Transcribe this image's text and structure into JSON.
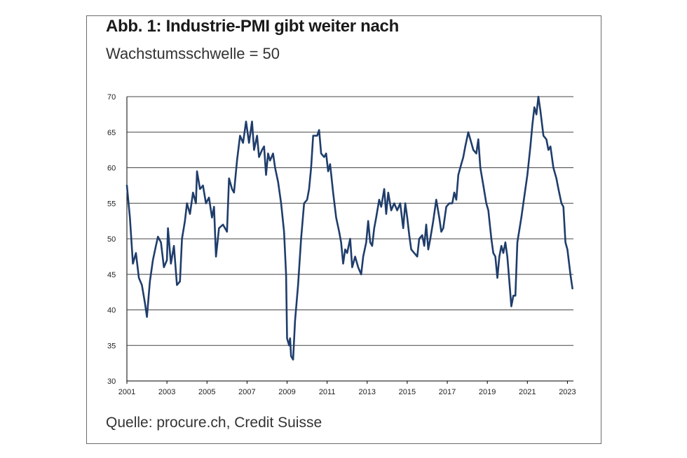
{
  "title": "Abb. 1: Industrie-PMI gibt weiter nach",
  "subtitle": "Wachstumsschwelle = 50",
  "source": "Quelle: procure.ch, Credit Suisse",
  "chart_data": {
    "type": "line",
    "title": "Abb. 1: Industrie-PMI gibt weiter nach",
    "subtitle": "Wachstumsschwelle = 50",
    "xlabel": "",
    "ylabel": "",
    "xlim": [
      2001,
      2023.3
    ],
    "ylim": [
      30,
      70
    ],
    "grid": true,
    "line_color": "#1f3d6b",
    "yticks": [
      30,
      35,
      40,
      45,
      50,
      55,
      60,
      65,
      70
    ],
    "xticks": [
      2001,
      2003,
      2005,
      2007,
      2009,
      2011,
      2013,
      2015,
      2017,
      2019,
      2021,
      2023
    ],
    "series": [
      {
        "values": [
          [
            2001.0,
            57.5
          ],
          [
            2001.15,
            53.0
          ],
          [
            2001.3,
            46.5
          ],
          [
            2001.45,
            48.0
          ],
          [
            2001.6,
            44.5
          ],
          [
            2001.75,
            43.5
          ],
          [
            2001.9,
            41.0
          ],
          [
            2002.0,
            39.0
          ],
          [
            2002.15,
            44.0
          ],
          [
            2002.3,
            47.0
          ],
          [
            2002.45,
            49.0
          ],
          [
            2002.55,
            50.3
          ],
          [
            2002.7,
            49.5
          ],
          [
            2002.85,
            46.0
          ],
          [
            2003.0,
            47.0
          ],
          [
            2003.05,
            51.5
          ],
          [
            2003.2,
            46.5
          ],
          [
            2003.35,
            49.0
          ],
          [
            2003.5,
            43.5
          ],
          [
            2003.65,
            44.0
          ],
          [
            2003.75,
            50.0
          ],
          [
            2003.9,
            52.5
          ],
          [
            2004.0,
            55.0
          ],
          [
            2004.15,
            53.5
          ],
          [
            2004.3,
            56.5
          ],
          [
            2004.45,
            55.0
          ],
          [
            2004.5,
            59.5
          ],
          [
            2004.65,
            57.0
          ],
          [
            2004.8,
            57.5
          ],
          [
            2004.95,
            55.0
          ],
          [
            2005.1,
            55.8
          ],
          [
            2005.25,
            53.0
          ],
          [
            2005.35,
            54.5
          ],
          [
            2005.45,
            47.5
          ],
          [
            2005.6,
            51.5
          ],
          [
            2005.8,
            52.0
          ],
          [
            2006.0,
            51.0
          ],
          [
            2006.1,
            58.5
          ],
          [
            2006.25,
            57.0
          ],
          [
            2006.35,
            56.5
          ],
          [
            2006.5,
            61.0
          ],
          [
            2006.65,
            64.5
          ],
          [
            2006.8,
            63.5
          ],
          [
            2006.95,
            66.5
          ],
          [
            2007.1,
            63.5
          ],
          [
            2007.25,
            66.5
          ],
          [
            2007.35,
            62.5
          ],
          [
            2007.5,
            64.5
          ],
          [
            2007.6,
            61.5
          ],
          [
            2007.75,
            62.5
          ],
          [
            2007.85,
            63.0
          ],
          [
            2007.95,
            59.0
          ],
          [
            2008.05,
            62.0
          ],
          [
            2008.15,
            61.0
          ],
          [
            2008.3,
            62.0
          ],
          [
            2008.4,
            60.0
          ],
          [
            2008.55,
            58.0
          ],
          [
            2008.7,
            55.0
          ],
          [
            2008.85,
            51.0
          ],
          [
            2008.95,
            45.0
          ],
          [
            2009.0,
            36.0
          ],
          [
            2009.1,
            35.0
          ],
          [
            2009.15,
            36.0
          ],
          [
            2009.2,
            33.5
          ],
          [
            2009.3,
            33.0
          ],
          [
            2009.4,
            38.5
          ],
          [
            2009.55,
            43.5
          ],
          [
            2009.7,
            50.0
          ],
          [
            2009.85,
            55.0
          ],
          [
            2010.0,
            55.5
          ],
          [
            2010.1,
            57.0
          ],
          [
            2010.2,
            60.0
          ],
          [
            2010.3,
            64.5
          ],
          [
            2010.5,
            64.5
          ],
          [
            2010.6,
            65.3
          ],
          [
            2010.7,
            62.0
          ],
          [
            2010.85,
            61.5
          ],
          [
            2010.95,
            62.0
          ],
          [
            2011.05,
            59.5
          ],
          [
            2011.15,
            60.5
          ],
          [
            2011.3,
            56.5
          ],
          [
            2011.45,
            53.0
          ],
          [
            2011.6,
            51.0
          ],
          [
            2011.7,
            49.5
          ],
          [
            2011.8,
            46.5
          ],
          [
            2011.9,
            48.5
          ],
          [
            2012.0,
            48.0
          ],
          [
            2012.15,
            50.0
          ],
          [
            2012.25,
            46.0
          ],
          [
            2012.4,
            47.5
          ],
          [
            2012.55,
            46.0
          ],
          [
            2012.7,
            45.0
          ],
          [
            2012.8,
            47.5
          ],
          [
            2012.95,
            49.5
          ],
          [
            2013.05,
            52.5
          ],
          [
            2013.15,
            49.5
          ],
          [
            2013.25,
            49.0
          ],
          [
            2013.35,
            51.5
          ],
          [
            2013.45,
            53.0
          ],
          [
            2013.6,
            55.5
          ],
          [
            2013.7,
            54.5
          ],
          [
            2013.85,
            57.0
          ],
          [
            2013.95,
            53.5
          ],
          [
            2014.05,
            56.5
          ],
          [
            2014.2,
            54.0
          ],
          [
            2014.35,
            55.0
          ],
          [
            2014.5,
            54.0
          ],
          [
            2014.65,
            55.0
          ],
          [
            2014.8,
            51.5
          ],
          [
            2014.9,
            55.0
          ],
          [
            2015.0,
            53.0
          ],
          [
            2015.1,
            50.5
          ],
          [
            2015.2,
            48.5
          ],
          [
            2015.35,
            48.0
          ],
          [
            2015.5,
            47.5
          ],
          [
            2015.6,
            50.0
          ],
          [
            2015.75,
            50.5
          ],
          [
            2015.85,
            49.0
          ],
          [
            2015.95,
            52.0
          ],
          [
            2016.05,
            48.5
          ],
          [
            2016.15,
            50.0
          ],
          [
            2016.3,
            52.5
          ],
          [
            2016.45,
            55.5
          ],
          [
            2016.6,
            53.0
          ],
          [
            2016.7,
            51.0
          ],
          [
            2016.8,
            51.5
          ],
          [
            2016.95,
            54.5
          ],
          [
            2017.1,
            55.0
          ],
          [
            2017.25,
            55.0
          ],
          [
            2017.35,
            56.5
          ],
          [
            2017.45,
            55.5
          ],
          [
            2017.55,
            59.0
          ],
          [
            2017.7,
            60.5
          ],
          [
            2017.8,
            61.5
          ],
          [
            2017.9,
            63.0
          ],
          [
            2018.05,
            65.0
          ],
          [
            2018.15,
            64.0
          ],
          [
            2018.3,
            62.5
          ],
          [
            2018.45,
            62.0
          ],
          [
            2018.55,
            64.0
          ],
          [
            2018.65,
            60.0
          ],
          [
            2018.8,
            57.5
          ],
          [
            2018.95,
            55.0
          ],
          [
            2019.05,
            54.0
          ],
          [
            2019.2,
            50.0
          ],
          [
            2019.3,
            48.0
          ],
          [
            2019.4,
            47.5
          ],
          [
            2019.5,
            44.5
          ],
          [
            2019.6,
            47.5
          ],
          [
            2019.7,
            49.0
          ],
          [
            2019.8,
            48.0
          ],
          [
            2019.9,
            49.5
          ],
          [
            2020.0,
            47.5
          ],
          [
            2020.1,
            44.0
          ],
          [
            2020.2,
            40.5
          ],
          [
            2020.3,
            42.0
          ],
          [
            2020.4,
            42.0
          ],
          [
            2020.5,
            49.5
          ],
          [
            2020.7,
            53.0
          ],
          [
            2020.85,
            56.0
          ],
          [
            2021.0,
            59.0
          ],
          [
            2021.15,
            63.0
          ],
          [
            2021.25,
            66.0
          ],
          [
            2021.35,
            68.5
          ],
          [
            2021.45,
            67.5
          ],
          [
            2021.55,
            70.0
          ],
          [
            2021.65,
            68.0
          ],
          [
            2021.8,
            64.5
          ],
          [
            2021.95,
            64.0
          ],
          [
            2022.05,
            62.5
          ],
          [
            2022.15,
            63.0
          ],
          [
            2022.3,
            60.0
          ],
          [
            2022.45,
            58.5
          ],
          [
            2022.55,
            57.0
          ],
          [
            2022.7,
            55.0
          ],
          [
            2022.8,
            54.5
          ],
          [
            2022.9,
            49.5
          ],
          [
            2023.0,
            48.5
          ],
          [
            2023.15,
            45.0
          ],
          [
            2023.25,
            43.0
          ]
        ]
      }
    ]
  }
}
